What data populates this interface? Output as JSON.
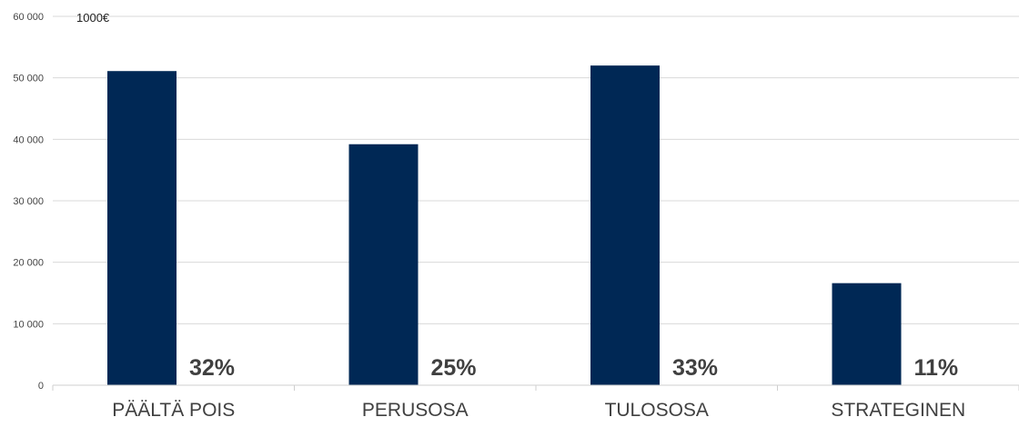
{
  "chart_data": {
    "type": "bar",
    "unit_label": "1000€",
    "categories": [
      "PÄÄLTÄ POIS",
      "PERUSOSA",
      "TULOSOSA",
      "STRATEGINEN"
    ],
    "values": [
      51100,
      39200,
      52000,
      16600
    ],
    "percent_labels": [
      "32%",
      "25%",
      "33%",
      "11%"
    ],
    "y_ticks": [
      "0",
      "10 000",
      "20 000",
      "30 000",
      "40 000",
      "50 000",
      "60 000"
    ],
    "ylim": [
      0,
      60000
    ],
    "grid": true,
    "bar_color": "#002855",
    "grid_color": "#d9d9d9"
  }
}
